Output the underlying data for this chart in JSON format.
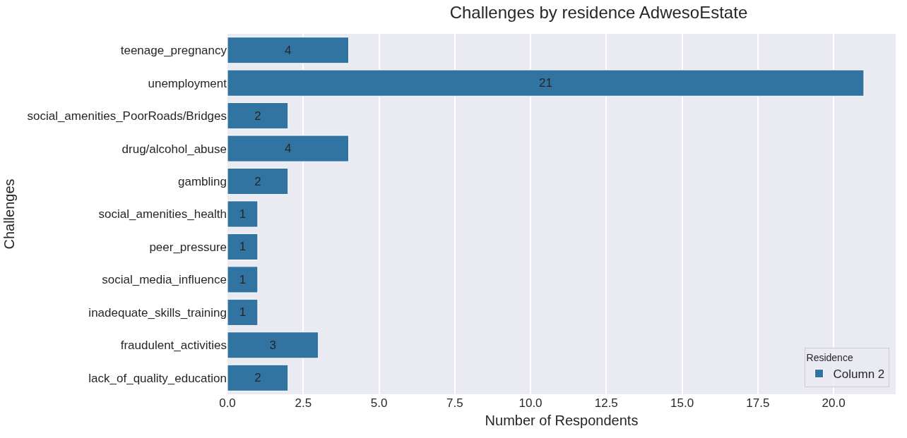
{
  "chart_data": {
    "type": "bar",
    "orientation": "horizontal",
    "title": "Challenges by residence AdwesoEstate",
    "xlabel": "Number of Respondents",
    "ylabel": "Challenges",
    "legend_title": "Residence",
    "categories": [
      "teenage_pregnancy",
      "unemployment",
      "social_amenities_PoorRoads/Bridges",
      "drug/alcohol_abuse",
      "gambling",
      "social_amenities_health",
      "peer_pressure",
      "social_media_influence",
      "inadequate_skills_training",
      "fraudulent_activities",
      "lack_of_quality_education"
    ],
    "series": [
      {
        "name": "Column 2",
        "color": "#3274a1",
        "values": [
          4,
          21,
          2,
          4,
          2,
          1,
          1,
          1,
          1,
          3,
          2
        ]
      }
    ],
    "xlim": [
      0,
      22.05
    ],
    "xticks": [
      {
        "value": 0,
        "label": "0.0"
      },
      {
        "value": 2.5,
        "label": "2.5"
      },
      {
        "value": 5,
        "label": "5.0"
      },
      {
        "value": 7.5,
        "label": "7.5"
      },
      {
        "value": 10,
        "label": "10.0"
      },
      {
        "value": 12.5,
        "label": "12.5"
      },
      {
        "value": 15,
        "label": "15.0"
      },
      {
        "value": 17.5,
        "label": "17.5"
      },
      {
        "value": 20,
        "label": "20.0"
      }
    ],
    "grid": "x",
    "legend": "bottom right",
    "data_labels": true
  }
}
